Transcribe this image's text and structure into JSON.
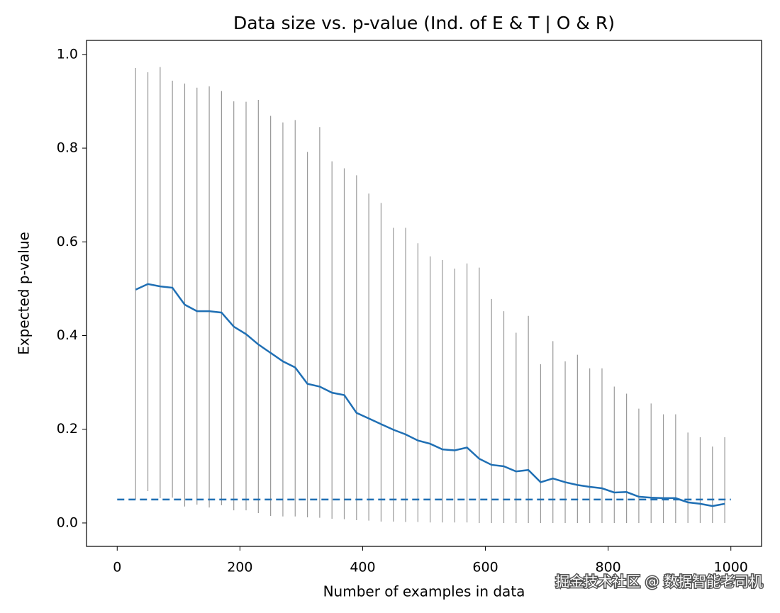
{
  "chart_data": {
    "type": "errorbar-line",
    "title": "Data size vs. p-value (Ind. of E & T | O & R)",
    "x_label": "Number of examples in data",
    "y_label": "Expected p-value",
    "watermark": "掘金技术社区 @ 数据智能老司机",
    "xlim": [
      -50,
      1050
    ],
    "ylim": [
      -0.05,
      1.03
    ],
    "xticks": [
      0,
      200,
      400,
      600,
      800,
      1000
    ],
    "yticks": [
      {
        "value": 0,
        "label": "0.0"
      },
      {
        "value": 0.2,
        "label": "0.2"
      },
      {
        "value": 0.4,
        "label": "0.4"
      },
      {
        "value": 0.6,
        "label": "0.6"
      },
      {
        "value": 0.8,
        "label": "0.8"
      },
      {
        "value": 1,
        "label": "1.0"
      }
    ],
    "x": [
      30,
      50,
      70,
      90,
      110,
      130,
      150,
      170,
      190,
      210,
      230,
      250,
      270,
      290,
      310,
      330,
      350,
      370,
      390,
      410,
      430,
      450,
      470,
      490,
      510,
      530,
      550,
      570,
      590,
      610,
      630,
      650,
      670,
      690,
      710,
      730,
      750,
      770,
      790,
      810,
      830,
      850,
      870,
      890,
      910,
      930,
      950,
      970,
      990
    ],
    "series": [
      {
        "color": "#1f6fb4",
        "values": [
          0.498,
          0.51,
          0.505,
          0.502,
          0.466,
          0.452,
          0.452,
          0.449,
          0.419,
          0.403,
          0.381,
          0.363,
          0.345,
          0.332,
          0.297,
          0.291,
          0.278,
          0.273,
          0.235,
          0.223,
          0.211,
          0.199,
          0.189,
          0.176,
          0.169,
          0.157,
          0.155,
          0.161,
          0.137,
          0.124,
          0.121,
          0.11,
          0.113,
          0.087,
          0.095,
          0.087,
          0.081,
          0.077,
          0.074,
          0.065,
          0.066,
          0.056,
          0.054,
          0.053,
          0.053,
          0.044,
          0.041,
          0.036,
          0.041
        ],
        "range_low": [
          0.051,
          0.068,
          0.053,
          0.054,
          0.035,
          0.039,
          0.033,
          0.038,
          0.027,
          0.027,
          0.021,
          0.015,
          0.014,
          0.014,
          0.012,
          0.011,
          0.009,
          0.008,
          0.006,
          0.005,
          0.003,
          0.003,
          0.002,
          0.002,
          0.001,
          0.001,
          0.001,
          0.001,
          0,
          0,
          0,
          0,
          0,
          0,
          0,
          0,
          0,
          0,
          0,
          0,
          0,
          0,
          0,
          0,
          0,
          0,
          0,
          0,
          0
        ],
        "range_high": [
          0.971,
          0.962,
          0.973,
          0.944,
          0.938,
          0.929,
          0.932,
          0.922,
          0.9,
          0.899,
          0.903,
          0.869,
          0.855,
          0.86,
          0.792,
          0.845,
          0.772,
          0.757,
          0.742,
          0.703,
          0.683,
          0.63,
          0.63,
          0.597,
          0.569,
          0.561,
          0.543,
          0.554,
          0.545,
          0.478,
          0.452,
          0.406,
          0.442,
          0.339,
          0.388,
          0.345,
          0.359,
          0.33,
          0.33,
          0.291,
          0.276,
          0.244,
          0.255,
          0.232,
          0.232,
          0.193,
          0.183,
          0.163,
          0.183
        ],
        "range_color": "#999999"
      }
    ],
    "reference_line": {
      "y": 0.05,
      "x": [
        0,
        1000
      ],
      "color": "#1f6fb4"
    }
  }
}
